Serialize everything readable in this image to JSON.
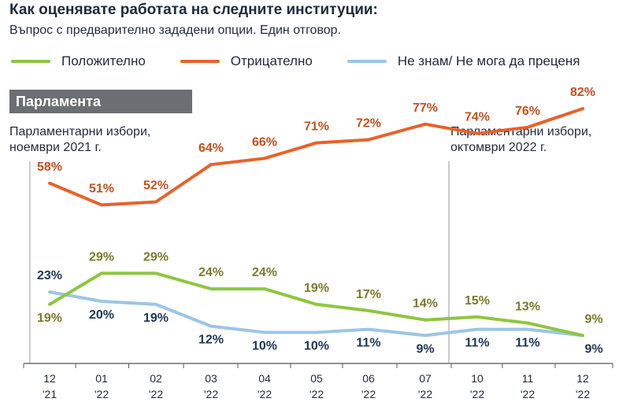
{
  "title": "Как оценявате работата на следните институции:",
  "subtitle": "Въпрос с предварително зададени опции. Един отговор.",
  "section_label": "Парламента",
  "annotations": {
    "left_line1": "Парламентарни избори,",
    "left_line2": "ноември 2021 г.",
    "right_line1": "Парламентарни избори,",
    "right_line2": "октомври 2022 г."
  },
  "colors": {
    "positive": "#8dc63f",
    "negative": "#e8622a",
    "dont_know": "#9cc5e6",
    "positive_label": "#7b7a2a",
    "negative_label": "#c4501f",
    "dont_know_label": "#1d3557",
    "axis": "#555555"
  },
  "chart_data": {
    "type": "line",
    "categories": [
      "12 '21",
      "01 '22",
      "02 '22",
      "03 '22",
      "04 '22",
      "05 '22",
      "06 '22",
      "07 '22",
      "10 '22",
      "11 '22",
      "12 '22"
    ],
    "x_month": [
      "12",
      "01",
      "02",
      "03",
      "04",
      "05",
      "06",
      "07",
      "10",
      "11",
      "12"
    ],
    "x_year": [
      "'21",
      "'22",
      "'22",
      "'22",
      "'22",
      "'22",
      "'22",
      "'22",
      "'22",
      "'22",
      "'22"
    ],
    "series": [
      {
        "name": "Положително",
        "key": "positive",
        "values": [
          19,
          29,
          29,
          24,
          24,
          19,
          17,
          14,
          15,
          13,
          9
        ]
      },
      {
        "name": "Отрицателно",
        "key": "negative",
        "values": [
          58,
          51,
          52,
          64,
          66,
          71,
          72,
          77,
          74,
          76,
          82
        ]
      },
      {
        "name": "Не знам/ Не мога да преценя",
        "key": "dont_know",
        "values": [
          23,
          20,
          19,
          12,
          10,
          10,
          11,
          9,
          11,
          11,
          9
        ]
      }
    ],
    "value_suffix": "%",
    "reference_lines_at": [
      "12 '21",
      "10 '22"
    ]
  }
}
